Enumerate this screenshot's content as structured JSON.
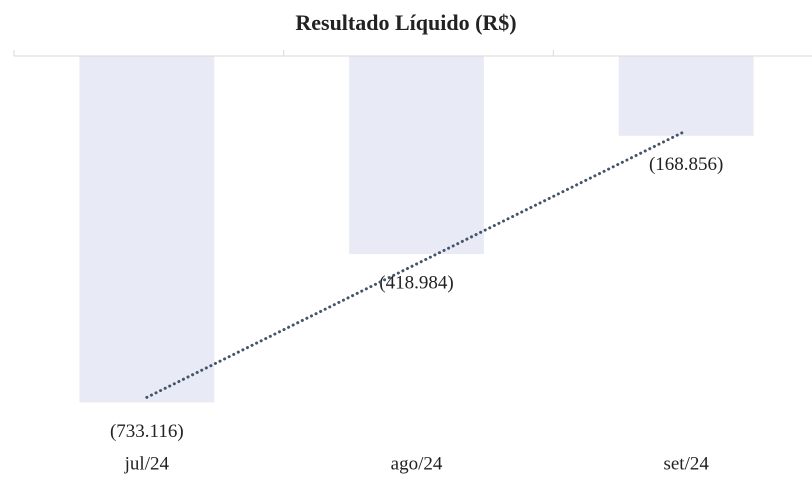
{
  "chart_data": {
    "type": "bar",
    "title": "Resultado Líquido (R$)",
    "categories": [
      "jul/24",
      "ago/24",
      "set/24"
    ],
    "values": [
      -733116,
      -418984,
      -168856
    ],
    "value_labels": [
      "(733.116)",
      "(418.984)",
      "(168.856)"
    ],
    "color": "#e8eaf5",
    "ylim": [
      -800000,
      0
    ],
    "trendline": {
      "type": "linear",
      "color": "#44546a"
    }
  }
}
